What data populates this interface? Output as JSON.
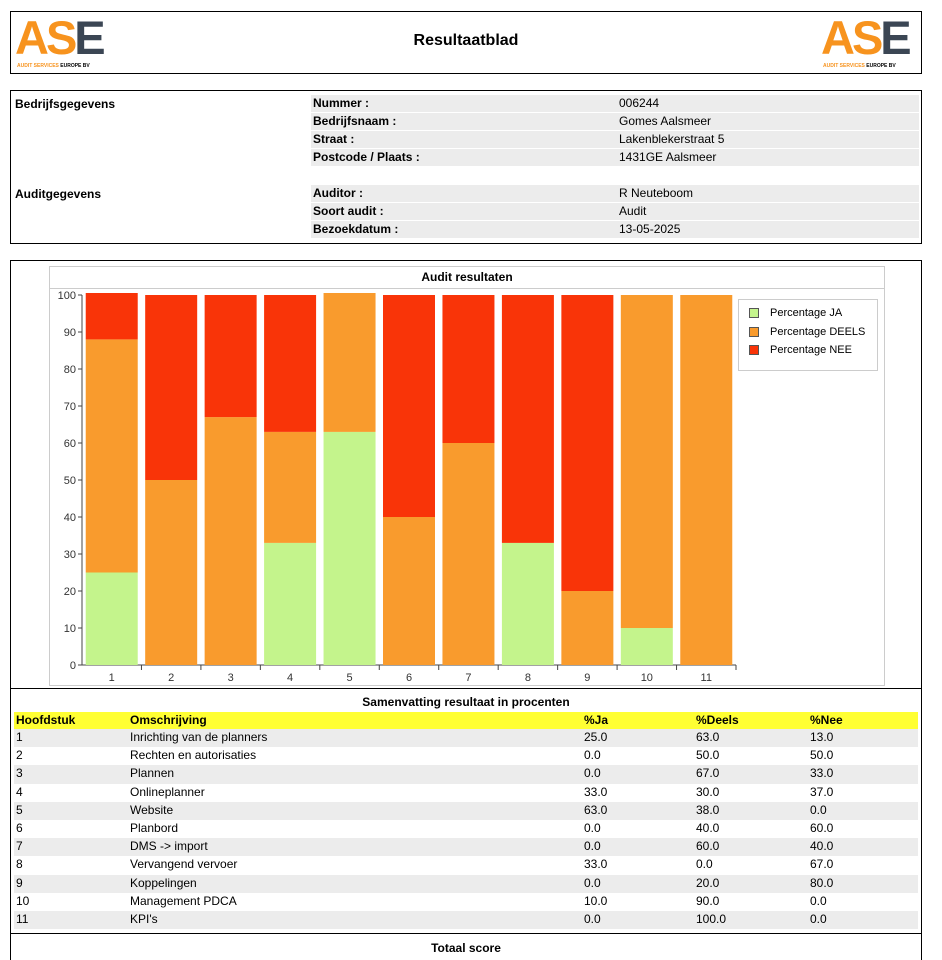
{
  "header": {
    "title": "Resultaatblad",
    "logo_text": "ASE",
    "logo_sub_a": "AUDIT SERVICES",
    "logo_sub_b": "EUROPE BV"
  },
  "info": {
    "bedrijf_heading": "Bedrijfsgegevens",
    "audit_heading": "Auditgegevens",
    "rows": [
      {
        "label": "Nummer :",
        "value": "006244"
      },
      {
        "label": "Bedrijfsnaam :",
        "value": "Gomes Aalsmeer"
      },
      {
        "label": "Straat :",
        "value": "Lakenblekerstraat 5"
      },
      {
        "label": "Postcode / Plaats :",
        "value": "1431GE Aalsmeer"
      },
      {
        "label": "Auditor :",
        "value": "R Neuteboom"
      },
      {
        "label": "Soort audit :",
        "value": "Audit"
      },
      {
        "label": "Bezoekdatum :",
        "value": "13-05-2025"
      }
    ]
  },
  "chart_data": {
    "type": "bar",
    "stacked": true,
    "title": "Audit resultaten",
    "categories": [
      "1",
      "2",
      "3",
      "4",
      "5",
      "6",
      "7",
      "8",
      "9",
      "10",
      "11"
    ],
    "series": [
      {
        "name": "Percentage JA",
        "color": "#c4f48c",
        "values": [
          25,
          0,
          0,
          33,
          63,
          0,
          0,
          33,
          0,
          10,
          0
        ]
      },
      {
        "name": "Percentage DEELS",
        "color": "#f99b2d",
        "values": [
          63,
          50,
          67,
          30,
          38,
          40,
          60,
          0,
          20,
          90,
          100
        ]
      },
      {
        "name": "Percentage NEE",
        "color": "#f93408",
        "values": [
          13,
          50,
          33,
          37,
          0,
          60,
          40,
          67,
          80,
          0,
          0
        ]
      }
    ],
    "ylim": [
      0,
      100
    ],
    "yticks": [
      "0",
      "10",
      "20",
      "30",
      "40",
      "50",
      "60",
      "70",
      "80",
      "90",
      "100"
    ],
    "legend_position": "right",
    "grid": false
  },
  "summary": {
    "title": "Samenvatting resultaat in procenten",
    "headers": [
      "Hoofdstuk",
      "Omschrijving",
      "%Ja",
      "%Deels",
      "%Nee"
    ],
    "rows": [
      [
        "1",
        "Inrichting van de planners",
        "25.0",
        "63.0",
        "13.0"
      ],
      [
        "2",
        "Rechten en autorisaties",
        "0.0",
        "50.0",
        "50.0"
      ],
      [
        "3",
        "Plannen",
        "0.0",
        "67.0",
        "33.0"
      ],
      [
        "4",
        "Onlineplanner",
        "33.0",
        "30.0",
        "37.0"
      ],
      [
        "5",
        "Website",
        "63.0",
        "38.0",
        "0.0"
      ],
      [
        "6",
        "Planbord",
        "0.0",
        "40.0",
        "60.0"
      ],
      [
        "7",
        "DMS -> import",
        "0.0",
        "60.0",
        "40.0"
      ],
      [
        "8",
        "Vervangend vervoer",
        "33.0",
        "0.0",
        "67.0"
      ],
      [
        "9",
        "Koppelingen",
        "0.0",
        "20.0",
        "80.0"
      ],
      [
        "10",
        "Management PDCA",
        "10.0",
        "90.0",
        "0.0"
      ],
      [
        "11",
        "KPI's",
        "0.0",
        "100.0",
        "0.0"
      ]
    ]
  },
  "total": {
    "title": "Totaal score"
  }
}
